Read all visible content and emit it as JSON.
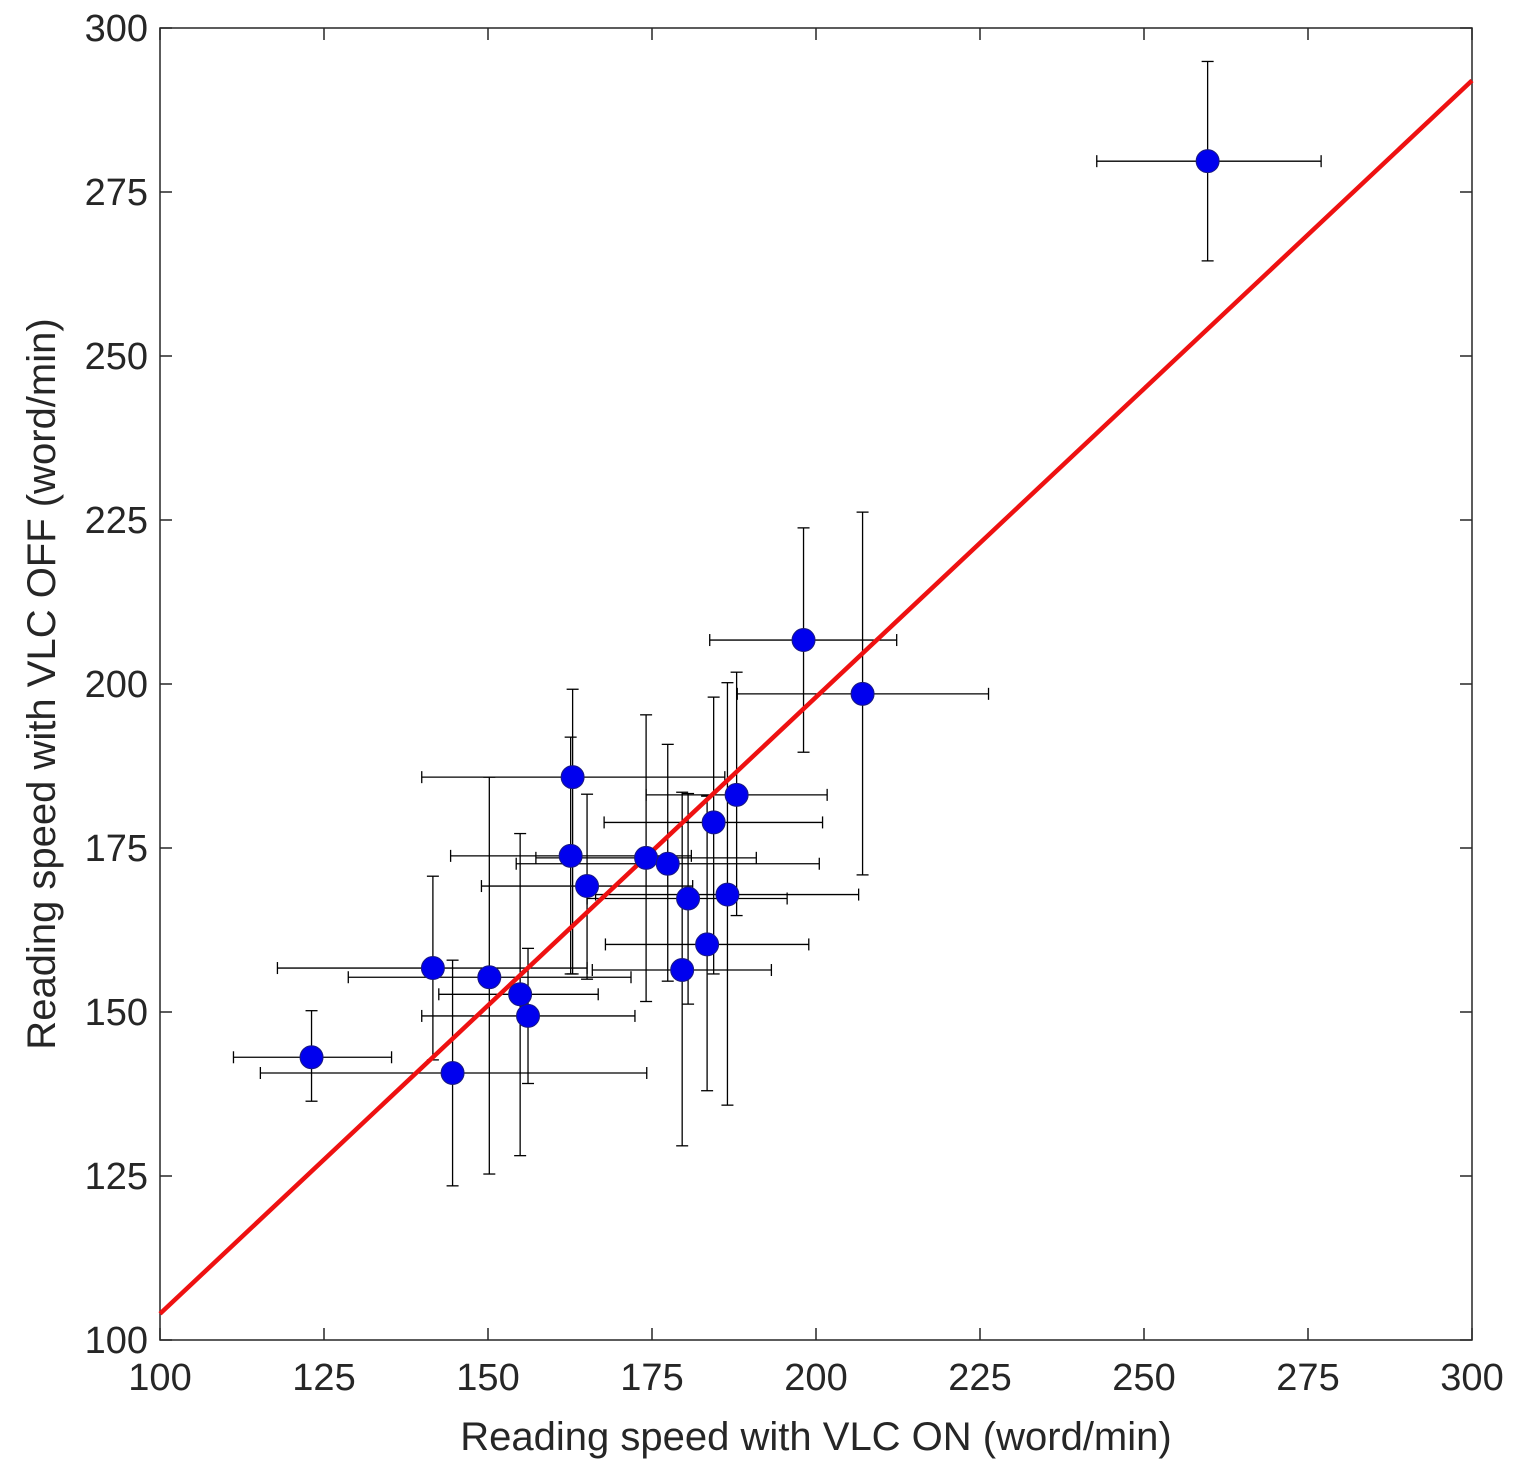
{
  "chart_data": {
    "type": "scatter",
    "title": "",
    "xlabel": "Reading speed with VLC ON (word/min)",
    "ylabel": "Reading speed with VLC OFF (word/min)",
    "xlim": [
      100,
      300
    ],
    "ylim": [
      100,
      300
    ],
    "xticks": [
      100,
      125,
      150,
      175,
      200,
      225,
      250,
      275,
      300
    ],
    "yticks": [
      100,
      125,
      150,
      175,
      200,
      225,
      250,
      275,
      300
    ],
    "grid": false,
    "colors": {
      "points": "#0000ee",
      "fit_line": "#ee1111",
      "error_bars": "#000000",
      "axes": "#262626"
    },
    "fit_line": {
      "x": [
        100,
        300
      ],
      "y": [
        104,
        292
      ]
    },
    "points": [
      {
        "x": 259.7,
        "y": 279.7,
        "x_err": [
          242.8,
          277.0
        ],
        "y_err": [
          264.5,
          294.9
        ]
      },
      {
        "x": 198.1,
        "y": 206.7,
        "x_err": [
          183.8,
          212.3
        ],
        "y_err": [
          189.6,
          223.8
        ]
      },
      {
        "x": 207.1,
        "y": 198.5,
        "x_err": [
          188.0,
          226.3
        ],
        "y_err": [
          170.9,
          226.2
        ]
      },
      {
        "x": 162.9,
        "y": 185.8,
        "x_err": [
          139.9,
          186.1
        ],
        "y_err": [
          155.8,
          199.2
        ]
      },
      {
        "x": 187.9,
        "y": 183.1,
        "x_err": [
          174.1,
          201.7
        ],
        "y_err": [
          164.7,
          201.8
        ]
      },
      {
        "x": 184.4,
        "y": 178.9,
        "x_err": [
          167.7,
          201.0
        ],
        "y_err": [
          155.8,
          198.0
        ]
      },
      {
        "x": 162.6,
        "y": 173.8,
        "x_err": [
          144.3,
          181.0
        ],
        "y_err": [
          155.8,
          191.9
        ]
      },
      {
        "x": 174.1,
        "y": 173.5,
        "x_err": [
          157.3,
          190.9
        ],
        "y_err": [
          151.6,
          195.3
        ]
      },
      {
        "x": 177.4,
        "y": 172.6,
        "x_err": [
          154.3,
          200.5
        ],
        "y_err": [
          154.7,
          190.8
        ]
      },
      {
        "x": 165.1,
        "y": 169.2,
        "x_err": [
          149.0,
          181.2
        ],
        "y_err": [
          155.0,
          183.2
        ]
      },
      {
        "x": 180.5,
        "y": 167.3,
        "x_err": [
          165.1,
          195.6
        ],
        "y_err": [
          151.2,
          183.3
        ]
      },
      {
        "x": 186.5,
        "y": 167.9,
        "x_err": [
          166.4,
          206.5
        ],
        "y_err": [
          135.8,
          200.2
        ]
      },
      {
        "x": 183.4,
        "y": 160.3,
        "x_err": [
          167.9,
          198.9
        ],
        "y_err": [
          138.0,
          182.9
        ]
      },
      {
        "x": 179.6,
        "y": 156.4,
        "x_err": [
          165.9,
          193.2
        ],
        "y_err": [
          129.6,
          183.5
        ]
      },
      {
        "x": 141.6,
        "y": 156.7,
        "x_err": [
          117.9,
          165.1
        ],
        "y_err": [
          142.7,
          170.7
        ]
      },
      {
        "x": 150.2,
        "y": 155.3,
        "x_err": [
          128.7,
          171.8
        ],
        "y_err": [
          125.3,
          185.8
        ]
      },
      {
        "x": 154.9,
        "y": 152.7,
        "x_err": [
          142.5,
          166.8
        ],
        "y_err": [
          128.1,
          177.2
        ]
      },
      {
        "x": 156.1,
        "y": 149.4,
        "x_err": [
          139.9,
          172.4
        ],
        "y_err": [
          139.1,
          159.7
        ]
      },
      {
        "x": 123.1,
        "y": 143.1,
        "x_err": [
          111.2,
          135.3
        ],
        "y_err": [
          136.4,
          150.2
        ]
      },
      {
        "x": 144.6,
        "y": 140.7,
        "x_err": [
          115.3,
          174.2
        ],
        "y_err": [
          123.5,
          157.9
        ]
      }
    ]
  }
}
